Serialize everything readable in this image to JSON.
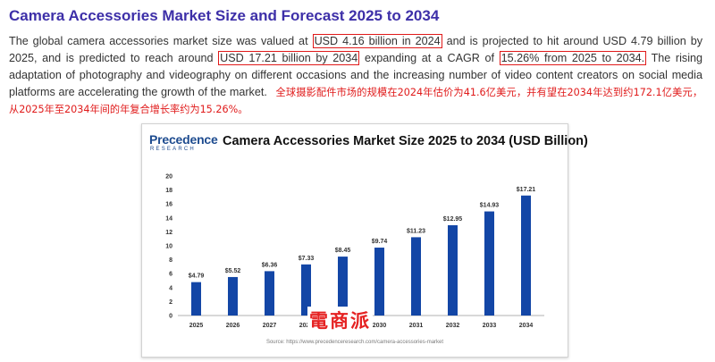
{
  "page": {
    "title": "Camera Accessories Market Size and Forecast 2025 to 2034",
    "para_1": "The global camera accessories market size was valued at",
    "hl_1": "USD 4.16 billion in 2024",
    "para_2": "and is projected to hit around USD 4.79 billion by 2025, and is predicted to reach around",
    "hl_2": "USD 17.21 billion by 2034",
    "para_3": "expanding at a CAGR of",
    "hl_3": "15.26% from 2025 to 2034.",
    "para_4": "The rising adaptation of photography and videography on different occasions and the increasing number of video content creators on social media platforms are accelerating the growth of the market.",
    "note_cn": "全球摄影配件市场的规模在2024年估价为41.6亿美元，并有望在2034年达到约172.1亿美元，从2025年至2034年间的年复合增长率约为15.26%。",
    "highlight_color": "#e01a1a",
    "title_color": "#3d2fa8"
  },
  "chart": {
    "logo_main": "Precedence",
    "logo_sub": "RESEARCH",
    "source": "Source: https://www.precedenceresearch.com/camera-accessories-market"
  },
  "watermark": "電商派",
  "chart_data": {
    "type": "bar",
    "title": "Camera Accessories Market Size 2025 to 2034 (USD Billion)",
    "categories": [
      "2025",
      "2026",
      "2027",
      "2028",
      "2029",
      "2030",
      "2031",
      "2032",
      "2033",
      "2034"
    ],
    "values": [
      4.79,
      5.52,
      6.36,
      7.33,
      8.45,
      9.74,
      11.23,
      12.95,
      14.93,
      17.21
    ],
    "data_labels": [
      "$4.79",
      "$5.52",
      "$6.36",
      "$7.33",
      "$8.45",
      "$9.74",
      "$11.23",
      "$12.95",
      "$14.93",
      "$17.21"
    ],
    "y_ticks": [
      0,
      2,
      4,
      6,
      8,
      10,
      12,
      14,
      16,
      18,
      20
    ],
    "ylim": [
      0,
      20
    ],
    "grid": false,
    "bar_color": "#1346a6",
    "xlabel": "",
    "ylabel": ""
  }
}
